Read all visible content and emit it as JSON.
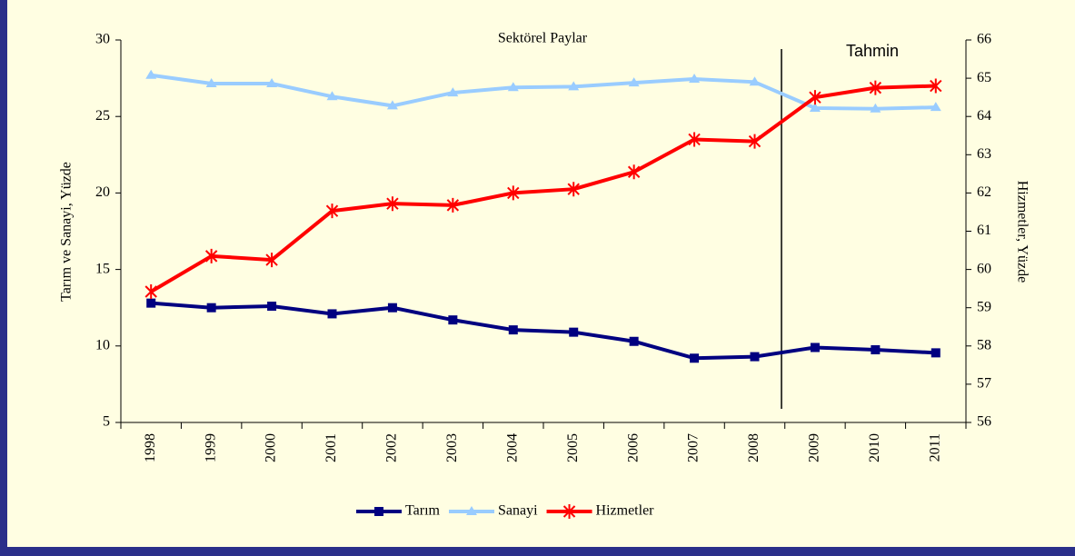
{
  "chart_data": {
    "type": "line",
    "title": "Sektörel Paylar",
    "annotation": "Tahmin",
    "y_label": "Tarım ve Sanayi, Yüzde",
    "y2_label": "Hizmetler, Yüzde",
    "categories": [
      "1998",
      "1999",
      "2000",
      "2001",
      "2002",
      "2003",
      "2004",
      "2005",
      "2006",
      "2007",
      "2008",
      "2009",
      "2010",
      "2011"
    ],
    "ylim": [
      5,
      30
    ],
    "yticks": [
      5,
      10,
      15,
      20,
      25,
      30
    ],
    "y2lim": [
      56,
      66
    ],
    "y2ticks": [
      56,
      57,
      58,
      59,
      60,
      61,
      62,
      63,
      64,
      65,
      66
    ],
    "legend": "bottom",
    "series": [
      {
        "name": "Tarım",
        "color": "#000080",
        "marker": "square",
        "values": [
          12.8,
          12.5,
          12.6,
          12.1,
          12.5,
          11.7,
          11.05,
          10.9,
          10.3,
          9.2,
          9.3,
          9.9,
          9.75,
          9.55
        ]
      },
      {
        "name": "Sanayi",
        "color": "#99ccff",
        "marker": "triangle",
        "values": [
          27.7,
          27.15,
          27.15,
          26.3,
          25.7,
          26.55,
          26.9,
          26.95,
          27.2,
          27.45,
          27.25,
          25.55,
          25.5,
          25.6
        ]
      },
      {
        "name": "Hizmetler",
        "color": "#ff0000",
        "marker": "asterisk",
        "axis": "y2",
        "values": [
          59.42,
          60.35,
          60.25,
          61.53,
          61.72,
          61.68,
          62.0,
          62.1,
          62.55,
          63.4,
          63.35,
          64.5,
          64.75,
          64.8
        ]
      }
    ]
  }
}
